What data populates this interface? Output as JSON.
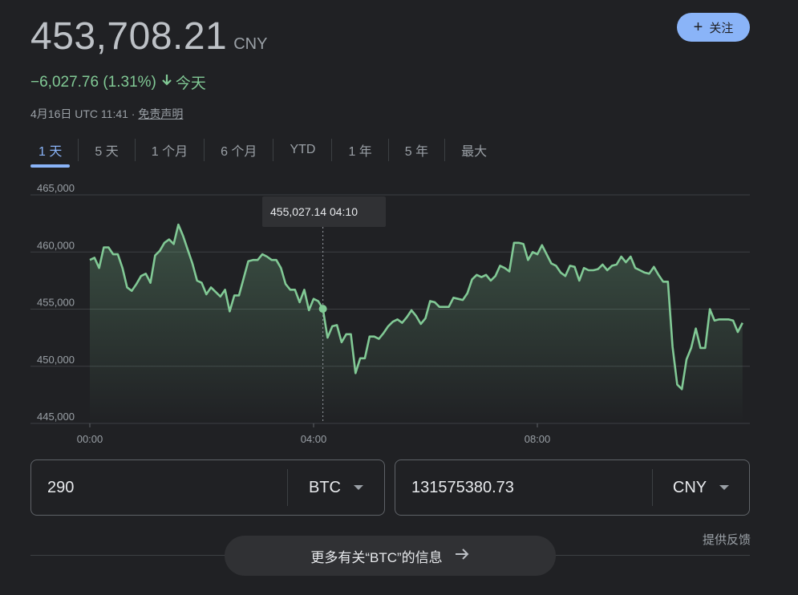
{
  "header": {
    "price": "453,708.21",
    "currency": "CNY",
    "follow_label": "关注",
    "change_text": "−6,027.76 (1.31%)",
    "change_period": "今天",
    "timestamp": "4月16日 UTC 11:41 · ",
    "disclaimer": "免责声明"
  },
  "tabs": [
    "1 天",
    "5 天",
    "1 个月",
    "6 个月",
    "YTD",
    "1 年",
    "5 年",
    "最大"
  ],
  "colors": {
    "line": "#81c995",
    "accent": "#8ab4f8",
    "background": "#202124"
  },
  "chart_data": {
    "type": "line",
    "y_ticks": [
      "465,000",
      "460,000",
      "455,000",
      "450,000",
      "445,000"
    ],
    "x_ticks": [
      "00:00",
      "04:00",
      "08:00"
    ],
    "ylim": [
      445000,
      465000
    ],
    "xlim_minutes": [
      0,
      705
    ],
    "tooltip": {
      "value": "455,027.14",
      "time": "04:10",
      "minute": 250
    },
    "points": [
      [
        0,
        459300
      ],
      [
        5,
        459500
      ],
      [
        10,
        458600
      ],
      [
        15,
        460400
      ],
      [
        20,
        460400
      ],
      [
        25,
        459800
      ],
      [
        30,
        459800
      ],
      [
        35,
        458600
      ],
      [
        40,
        456900
      ],
      [
        45,
        456600
      ],
      [
        50,
        457200
      ],
      [
        55,
        457900
      ],
      [
        60,
        458100
      ],
      [
        65,
        457300
      ],
      [
        70,
        459700
      ],
      [
        75,
        460100
      ],
      [
        80,
        460800
      ],
      [
        85,
        461100
      ],
      [
        90,
        460700
      ],
      [
        95,
        462400
      ],
      [
        100,
        461400
      ],
      [
        105,
        460200
      ],
      [
        110,
        459000
      ],
      [
        115,
        457500
      ],
      [
        120,
        457300
      ],
      [
        125,
        456300
      ],
      [
        130,
        456900
      ],
      [
        135,
        456500
      ],
      [
        140,
        456100
      ],
      [
        145,
        456700
      ],
      [
        150,
        454800
      ],
      [
        155,
        456200
      ],
      [
        160,
        456200
      ],
      [
        165,
        457700
      ],
      [
        170,
        459200
      ],
      [
        175,
        459300
      ],
      [
        180,
        459300
      ],
      [
        185,
        459800
      ],
      [
        190,
        459600
      ],
      [
        195,
        459300
      ],
      [
        200,
        459300
      ],
      [
        205,
        458600
      ],
      [
        210,
        457200
      ],
      [
        215,
        456700
      ],
      [
        220,
        456700
      ],
      [
        225,
        455600
      ],
      [
        230,
        456700
      ],
      [
        235,
        454900
      ],
      [
        240,
        455900
      ],
      [
        245,
        455700
      ],
      [
        250,
        455027
      ],
      [
        255,
        452500
      ],
      [
        260,
        453500
      ],
      [
        265,
        453600
      ],
      [
        270,
        452100
      ],
      [
        275,
        452800
      ],
      [
        280,
        452800
      ],
      [
        285,
        449400
      ],
      [
        290,
        450700
      ],
      [
        295,
        450700
      ],
      [
        300,
        452600
      ],
      [
        305,
        452600
      ],
      [
        310,
        452400
      ],
      [
        315,
        452900
      ],
      [
        320,
        453500
      ],
      [
        325,
        453900
      ],
      [
        330,
        454100
      ],
      [
        335,
        453800
      ],
      [
        340,
        454300
      ],
      [
        345,
        454900
      ],
      [
        350,
        454400
      ],
      [
        355,
        453700
      ],
      [
        360,
        454200
      ],
      [
        365,
        455700
      ],
      [
        370,
        455600
      ],
      [
        375,
        455200
      ],
      [
        380,
        455200
      ],
      [
        385,
        455200
      ],
      [
        390,
        456000
      ],
      [
        395,
        455900
      ],
      [
        400,
        455800
      ],
      [
        405,
        456400
      ],
      [
        410,
        457600
      ],
      [
        415,
        458000
      ],
      [
        420,
        457800
      ],
      [
        425,
        458000
      ],
      [
        430,
        457500
      ],
      [
        435,
        457900
      ],
      [
        440,
        458800
      ],
      [
        445,
        458600
      ],
      [
        450,
        458300
      ],
      [
        455,
        460800
      ],
      [
        460,
        460800
      ],
      [
        465,
        460700
      ],
      [
        470,
        459300
      ],
      [
        475,
        460000
      ],
      [
        480,
        459800
      ],
      [
        485,
        460600
      ],
      [
        490,
        459800
      ],
      [
        495,
        459000
      ],
      [
        500,
        458800
      ],
      [
        505,
        458200
      ],
      [
        510,
        457900
      ],
      [
        515,
        458800
      ],
      [
        520,
        458700
      ],
      [
        525,
        457500
      ],
      [
        530,
        458600
      ],
      [
        535,
        458400
      ],
      [
        540,
        458400
      ],
      [
        545,
        458500
      ],
      [
        550,
        458900
      ],
      [
        555,
        458400
      ],
      [
        560,
        458800
      ],
      [
        565,
        458900
      ],
      [
        570,
        459600
      ],
      [
        575,
        459100
      ],
      [
        580,
        459600
      ],
      [
        585,
        458600
      ],
      [
        590,
        458400
      ],
      [
        595,
        458200
      ],
      [
        600,
        458100
      ],
      [
        605,
        458700
      ],
      [
        610,
        458000
      ],
      [
        615,
        457400
      ],
      [
        620,
        457400
      ],
      [
        625,
        451700
      ],
      [
        630,
        448400
      ],
      [
        635,
        448000
      ],
      [
        640,
        450600
      ],
      [
        645,
        451600
      ],
      [
        650,
        453300
      ],
      [
        655,
        451600
      ],
      [
        660,
        451600
      ],
      [
        665,
        455000
      ],
      [
        670,
        454000
      ],
      [
        675,
        454100
      ],
      [
        680,
        454100
      ],
      [
        685,
        454100
      ],
      [
        690,
        454000
      ],
      [
        695,
        453000
      ],
      [
        700,
        453800
      ]
    ]
  },
  "converter": {
    "from_value": "290",
    "from_unit": "BTC",
    "to_value": "131575380.73",
    "to_unit": "CNY"
  },
  "footer": {
    "feedback": "提供反馈",
    "more_info": "更多有关“BTC”的信息"
  }
}
